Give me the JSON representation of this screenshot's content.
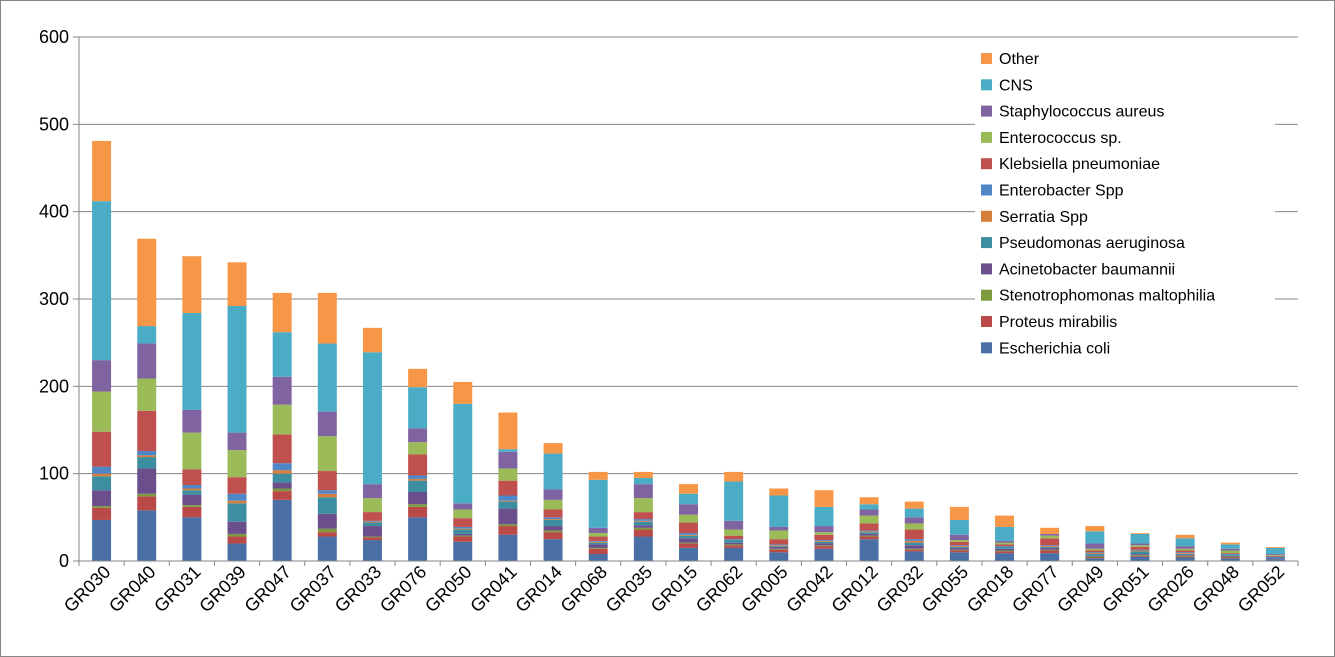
{
  "chart_data": {
    "type": "bar",
    "stacked": true,
    "title": "",
    "xlabel": "",
    "ylabel": "",
    "ylim": [
      0,
      600
    ],
    "yticks": [
      0,
      100,
      200,
      300,
      400,
      500,
      600
    ],
    "grid": true,
    "legend_position": "top-right",
    "categories": [
      "GR030",
      "GR040",
      "GR031",
      "GR039",
      "GR047",
      "GR037",
      "GR033",
      "GR076",
      "GR050",
      "GR041",
      "GR014",
      "GR068",
      "GR035",
      "GR015",
      "GR062",
      "GR005",
      "GR042",
      "GR012",
      "GR032",
      "GR055",
      "GR018",
      "GR077",
      "GR049",
      "GR051",
      "GR026",
      "GR048",
      "GR052"
    ],
    "series": [
      {
        "name": "Escherichia coli",
        "color": "#4a6fa5",
        "values": [
          47,
          58,
          50,
          20,
          70,
          28,
          24,
          50,
          22,
          30,
          25,
          8,
          28,
          15,
          15,
          10,
          14,
          25,
          11,
          10,
          9,
          9,
          3,
          5,
          4,
          3,
          2
        ]
      },
      {
        "name": "Proteus mirabilis",
        "color": "#b94a48",
        "values": [
          14,
          16,
          12,
          8,
          10,
          5,
          3,
          12,
          6,
          10,
          8,
          6,
          8,
          5,
          3,
          3,
          3,
          3,
          2,
          2,
          2,
          3,
          1,
          1,
          1,
          1,
          0
        ]
      },
      {
        "name": "Stenotrophomonas maltophilia",
        "color": "#7e9a3f",
        "values": [
          2,
          3,
          2,
          3,
          3,
          4,
          1,
          3,
          1,
          2,
          2,
          1,
          2,
          1,
          1,
          1,
          1,
          1,
          1,
          1,
          1,
          1,
          1,
          1,
          1,
          1,
          0
        ]
      },
      {
        "name": "Acinetobacter baumannii",
        "color": "#6a4f8c",
        "values": [
          18,
          29,
          12,
          14,
          7,
          17,
          12,
          14,
          2,
          18,
          5,
          4,
          3,
          5,
          2,
          2,
          2,
          2,
          4,
          2,
          2,
          2,
          1,
          1,
          1,
          1,
          1
        ]
      },
      {
        "name": "Pseudomonas aeruginosa",
        "color": "#3c8ea0",
        "values": [
          16,
          13,
          5,
          21,
          10,
          19,
          4,
          13,
          5,
          8,
          7,
          2,
          4,
          3,
          3,
          1,
          2,
          2,
          3,
          1,
          2,
          1,
          2,
          3,
          1,
          1,
          1
        ]
      },
      {
        "name": "Serratia Spp",
        "color": "#d67f3c",
        "values": [
          3,
          2,
          2,
          3,
          4,
          4,
          1,
          2,
          1,
          1,
          1,
          1,
          1,
          1,
          0,
          1,
          1,
          1,
          2,
          1,
          0,
          1,
          1,
          1,
          1,
          0,
          0
        ]
      },
      {
        "name": "Enterobacter Spp",
        "color": "#4f86c6",
        "values": [
          8,
          5,
          4,
          8,
          8,
          4,
          1,
          4,
          2,
          6,
          2,
          1,
          2,
          2,
          1,
          1,
          1,
          1,
          2,
          1,
          1,
          1,
          1,
          1,
          1,
          1,
          1
        ]
      },
      {
        "name": "Klebsiella pneumoniae",
        "color": "#c0504d",
        "values": [
          40,
          46,
          18,
          19,
          33,
          22,
          10,
          24,
          10,
          17,
          9,
          5,
          8,
          12,
          4,
          6,
          6,
          8,
          11,
          4,
          2,
          8,
          2,
          3,
          2,
          1,
          1
        ]
      },
      {
        "name": "Enterococcus sp.",
        "color": "#9bbb59",
        "values": [
          46,
          37,
          42,
          31,
          34,
          40,
          16,
          14,
          10,
          14,
          11,
          4,
          16,
          9,
          7,
          10,
          3,
          9,
          7,
          2,
          2,
          3,
          2,
          2,
          2,
          3,
          1
        ]
      },
      {
        "name": "Staphylococcus aureus",
        "color": "#8064a2",
        "values": [
          36,
          40,
          26,
          20,
          32,
          28,
          16,
          16,
          7,
          19,
          12,
          6,
          16,
          12,
          10,
          4,
          7,
          7,
          7,
          6,
          2,
          2,
          6,
          2,
          3,
          2,
          1
        ]
      },
      {
        "name": "CNS",
        "color": "#4bacc6",
        "values": [
          182,
          20,
          111,
          145,
          51,
          78,
          151,
          47,
          114,
          3,
          41,
          55,
          7,
          12,
          45,
          36,
          22,
          6,
          10,
          17,
          16,
          0,
          14,
          11,
          9,
          5,
          7
        ]
      },
      {
        "name": "Other",
        "color": "#f79646",
        "values": [
          69,
          100,
          65,
          50,
          45,
          58,
          28,
          21,
          25,
          42,
          12,
          9,
          7,
          11,
          11,
          8,
          19,
          8,
          8,
          15,
          13,
          7,
          6,
          1,
          4,
          2,
          1
        ]
      }
    ]
  }
}
